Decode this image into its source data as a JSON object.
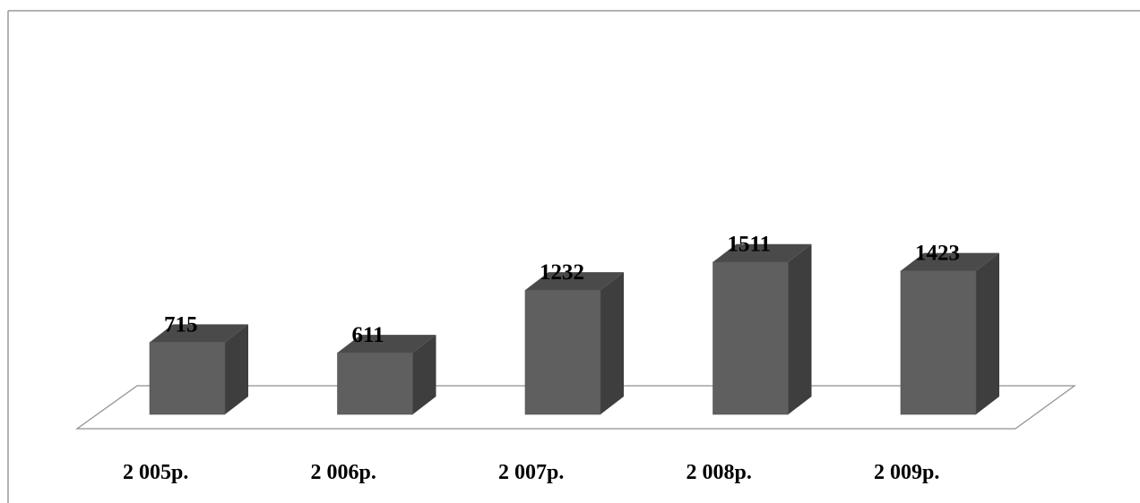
{
  "chart_data": {
    "type": "bar",
    "style": "3d-column",
    "categories": [
      "2 005р.",
      "2 006р.",
      "2 007р.",
      "2 008р.",
      "2 009р."
    ],
    "values": [
      715,
      611,
      1232,
      1511,
      1423
    ],
    "data_labels": [
      "715",
      "611",
      "1232",
      "1511",
      "1423"
    ],
    "title": "",
    "xlabel": "",
    "ylabel": "",
    "ylim": [
      0,
      1600
    ],
    "grid": false,
    "legend": "none",
    "colors": {
      "bar_front": "#5f5f5f",
      "bar_side": "#3e3e3e",
      "bar_top": "#4a4a4a",
      "floor": "#ffffff",
      "frame": "#9a9a9a"
    }
  }
}
